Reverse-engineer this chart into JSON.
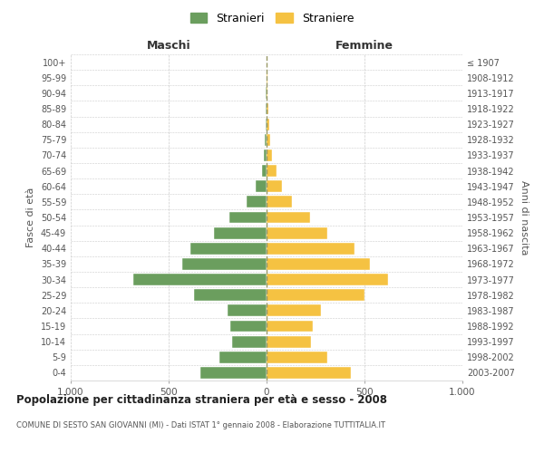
{
  "age_groups": [
    "0-4",
    "5-9",
    "10-14",
    "15-19",
    "20-24",
    "25-29",
    "30-34",
    "35-39",
    "40-44",
    "45-49",
    "50-54",
    "55-59",
    "60-64",
    "65-69",
    "70-74",
    "75-79",
    "80-84",
    "85-89",
    "90-94",
    "95-99",
    "100+"
  ],
  "birth_years": [
    "2003-2007",
    "1998-2002",
    "1993-1997",
    "1988-1992",
    "1983-1987",
    "1978-1982",
    "1973-1977",
    "1968-1972",
    "1963-1967",
    "1958-1962",
    "1953-1957",
    "1948-1952",
    "1943-1947",
    "1938-1942",
    "1933-1937",
    "1928-1932",
    "1923-1927",
    "1918-1922",
    "1913-1917",
    "1908-1912",
    "≤ 1907"
  ],
  "maschi": [
    340,
    240,
    175,
    185,
    200,
    370,
    680,
    430,
    390,
    270,
    190,
    100,
    55,
    25,
    15,
    8,
    5,
    4,
    3,
    2,
    2
  ],
  "femmine": [
    430,
    310,
    225,
    235,
    280,
    500,
    620,
    530,
    450,
    310,
    220,
    130,
    80,
    50,
    30,
    18,
    12,
    8,
    5,
    3,
    2
  ],
  "male_color": "#6b9e5e",
  "female_color": "#f5c242",
  "background_color": "#ffffff",
  "grid_color": "#cccccc",
  "center_line_color": "#999966",
  "title": "Popolazione per cittadinanza straniera per età e sesso - 2008",
  "subtitle": "COMUNE DI SESTO SAN GIOVANNI (MI) - Dati ISTAT 1° gennaio 2008 - Elaborazione TUTTITALIA.IT",
  "xlabel_left": "Maschi",
  "xlabel_right": "Femmine",
  "ylabel_left": "Fasce di età",
  "ylabel_right": "Anni di nascita",
  "xlim": 1000,
  "legend_male": "Stranieri",
  "legend_female": "Straniere",
  "bar_height": 0.75
}
